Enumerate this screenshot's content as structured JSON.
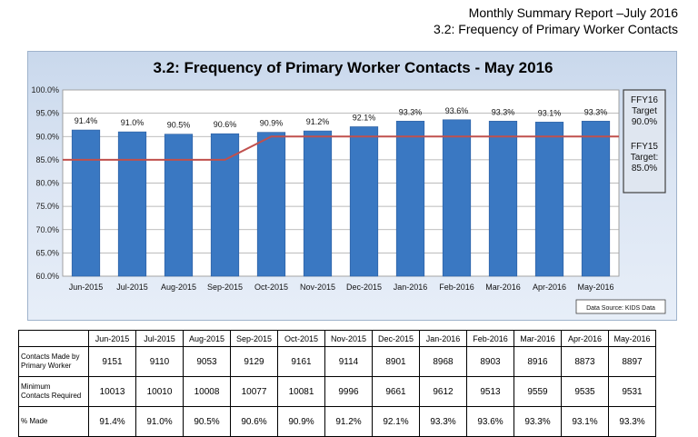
{
  "header": {
    "line1": "Monthly Summary Report –July 2016",
    "line2": "3.2: Frequency of Primary Worker Contacts"
  },
  "chart_data": {
    "type": "bar",
    "title": "3.2: Frequency of Primary Worker Contacts - May 2016",
    "categories": [
      "Jun-2015",
      "Jul-2015",
      "Aug-2015",
      "Sep-2015",
      "Oct-2015",
      "Nov-2015",
      "Dec-2015",
      "Jan-2016",
      "Feb-2016",
      "Mar-2016",
      "Apr-2016",
      "May-2016"
    ],
    "values": [
      91.4,
      91.0,
      90.5,
      90.6,
      90.9,
      91.2,
      92.1,
      93.3,
      93.6,
      93.3,
      93.1,
      93.3
    ],
    "data_labels": [
      "91.4%",
      "91.0%",
      "90.5%",
      "90.6%",
      "90.9%",
      "91.2%",
      "92.1%",
      "93.3%",
      "93.6%",
      "93.3%",
      "93.1%",
      "93.3%"
    ],
    "target_line": [
      85.0,
      85.0,
      85.0,
      85.0,
      90.0,
      90.0,
      90.0,
      90.0,
      90.0,
      90.0,
      90.0,
      90.0
    ],
    "ylim": [
      60,
      100
    ],
    "yticks": [
      "60.0%",
      "65.0%",
      "70.0%",
      "75.0%",
      "80.0%",
      "85.0%",
      "90.0%",
      "95.0%",
      "100.0%"
    ],
    "ytick_values": [
      60,
      65,
      70,
      75,
      80,
      85,
      90,
      95,
      100
    ],
    "grid": true,
    "bar_color": "#3a78c2",
    "target_color": "#c0504d",
    "targets_box": {
      "ffy16_label": "FFY16",
      "ffy16_target_label": "Target",
      "ffy16_value": "90.0%",
      "ffy15_label": "FFY15",
      "ffy15_target_label": "Target:",
      "ffy15_value": "85.0%"
    },
    "source": "Data Source: KIDS Data"
  },
  "table": {
    "headers": [
      "Jun-2015",
      "Jul-2015",
      "Aug-2015",
      "Sep-2015",
      "Oct-2015",
      "Nov-2015",
      "Dec-2015",
      "Jan-2016",
      "Feb-2016",
      "Mar-2016",
      "Apr-2016",
      "May-2016"
    ],
    "rows": [
      {
        "label_line1": "Contacts Made by",
        "label_line2": "Primary Worker",
        "values": [
          "9151",
          "9110",
          "9053",
          "9129",
          "9161",
          "9114",
          "8901",
          "8968",
          "8903",
          "8916",
          "8873",
          "8897"
        ]
      },
      {
        "label_line1": "Minimum",
        "label_line2": "Contacts Required",
        "values": [
          "10013",
          "10010",
          "10008",
          "10077",
          "10081",
          "9996",
          "9661",
          "9612",
          "9513",
          "9559",
          "9535",
          "9531"
        ]
      },
      {
        "label_line1": "% Made",
        "label_line2": "",
        "values": [
          "91.4%",
          "91.0%",
          "90.5%",
          "90.6%",
          "90.9%",
          "91.2%",
          "92.1%",
          "93.3%",
          "93.6%",
          "93.3%",
          "93.1%",
          "93.3%"
        ]
      }
    ]
  }
}
